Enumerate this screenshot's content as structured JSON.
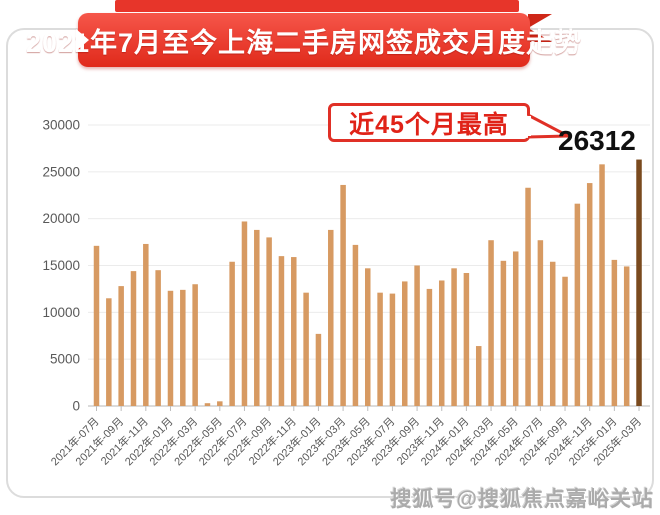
{
  "banner": {
    "title": "2021年7月至今上海二手房网签成交月度走势"
  },
  "annotation": {
    "label": "近45个月最高",
    "value": "26312"
  },
  "watermark": {
    "text": "搜狐号@搜狐焦点嘉峪关站"
  },
  "chart_data": {
    "type": "bar",
    "title": "2021年7月至今上海二手房网签成交月度走势",
    "xlabel": "",
    "ylabel": "",
    "ylim": [
      0,
      30000
    ],
    "yticks": [
      0,
      5000,
      10000,
      15000,
      20000,
      25000,
      30000
    ],
    "grid": true,
    "legend_position": "none",
    "bar_color": "#d79a62",
    "highlight_color": "#7a4a1e",
    "highlight_index": 44,
    "highlight_label": "26312",
    "x": [
      "2021-07",
      "2021-08",
      "2021-09",
      "2021-10",
      "2021-11",
      "2021-12",
      "2022-01",
      "2022-02",
      "2022-03",
      "2022-04",
      "2022-05",
      "2022-06",
      "2022-07",
      "2022-08",
      "2022-09",
      "2022-10",
      "2022-11",
      "2022-12",
      "2023-01",
      "2023-02",
      "2023-03",
      "2023-04",
      "2023-05",
      "2023-06",
      "2023-07",
      "2023-08",
      "2023-09",
      "2023-10",
      "2023-11",
      "2023-12",
      "2024-01",
      "2024-02",
      "2024-03",
      "2024-04",
      "2024-05",
      "2024-06",
      "2024-07",
      "2024-08",
      "2024-09",
      "2024-10",
      "2024-11",
      "2024-12",
      "2025-01",
      "2025-02",
      "2025-03"
    ],
    "values": [
      17100,
      11500,
      12800,
      14400,
      17300,
      14500,
      12300,
      12400,
      13000,
      300,
      500,
      15400,
      19700,
      18800,
      18000,
      16000,
      15900,
      12100,
      7700,
      18800,
      23600,
      17200,
      14700,
      12100,
      12000,
      13300,
      15000,
      12500,
      13400,
      14700,
      14200,
      6400,
      17700,
      15500,
      16500,
      23300,
      17700,
      15400,
      13800,
      21600,
      23800,
      25800,
      15600,
      14900,
      26312
    ],
    "tick_labels": [
      "2021年-07月",
      "2021年-09月",
      "2021年-11月",
      "2022年-01月",
      "2022年-03月",
      "2022年-05月",
      "2022年-07月",
      "2022年-09月",
      "2022年-11月",
      "2023年-01月",
      "2023年-03月",
      "2023年-05月",
      "2023年-07月",
      "2023年-09月",
      "2023年-11月",
      "2024年-01月",
      "2024年-03月",
      "2024年-05月",
      "2024年-07月",
      "2024年-09月",
      "2024年-11月",
      "2025年-01月",
      "2025年-03月"
    ]
  }
}
